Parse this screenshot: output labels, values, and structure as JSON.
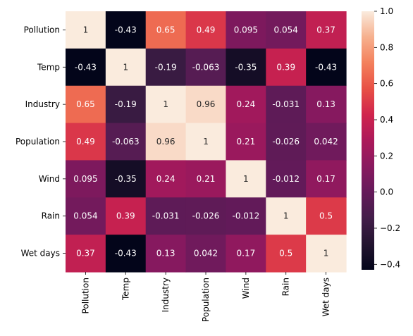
{
  "chart_data": {
    "type": "heatmap",
    "title": "",
    "xlabel": "",
    "ylabel": "",
    "x_categories": [
      "Pollution",
      "Temp",
      "Industry",
      "Population",
      "Wind",
      "Rain",
      "Wet days"
    ],
    "y_categories": [
      "Pollution",
      "Temp",
      "Industry",
      "Population",
      "Wind",
      "Rain",
      "Wet days"
    ],
    "values": [
      [
        1,
        -0.43,
        0.65,
        0.49,
        0.095,
        0.054,
        0.37
      ],
      [
        -0.43,
        1,
        -0.19,
        -0.063,
        -0.35,
        0.39,
        -0.43
      ],
      [
        0.65,
        -0.19,
        1,
        0.96,
        0.24,
        -0.031,
        0.13
      ],
      [
        0.49,
        -0.063,
        0.96,
        1,
        0.21,
        -0.026,
        0.042
      ],
      [
        0.095,
        -0.35,
        0.24,
        0.21,
        1,
        -0.012,
        0.17
      ],
      [
        0.054,
        0.39,
        -0.031,
        -0.026,
        -0.012,
        1,
        0.5
      ],
      [
        0.37,
        -0.43,
        0.13,
        0.042,
        0.17,
        0.5,
        1
      ]
    ],
    "value_labels": [
      [
        "1",
        "-0.43",
        "0.65",
        "0.49",
        "0.095",
        "0.054",
        "0.37"
      ],
      [
        "-0.43",
        "1",
        "-0.19",
        "-0.063",
        "-0.35",
        "0.39",
        "-0.43"
      ],
      [
        "0.65",
        "-0.19",
        "1",
        "0.96",
        "0.24",
        "-0.031",
        "0.13"
      ],
      [
        "0.49",
        "-0.063",
        "0.96",
        "1",
        "0.21",
        "-0.026",
        "0.042"
      ],
      [
        "0.095",
        "-0.35",
        "0.24",
        "0.21",
        "1",
        "-0.012",
        "0.17"
      ],
      [
        "0.054",
        "0.39",
        "-0.031",
        "-0.026",
        "-0.012",
        "1",
        "0.5"
      ],
      [
        "0.37",
        "-0.43",
        "0.13",
        "0.042",
        "0.17",
        "0.5",
        "1"
      ]
    ],
    "colorbar": {
      "colormap": "rocket",
      "vmin": -0.43,
      "vmax": 1,
      "ticks": [
        -0.4,
        -0.2,
        0.0,
        0.2,
        0.4,
        0.6,
        0.8,
        1.0
      ],
      "tick_labels": [
        "−0.4",
        "−0.2",
        "0.0",
        "0.2",
        "0.4",
        "0.6",
        "0.8",
        "1.0"
      ]
    },
    "legend": "colorbar-right",
    "grid": false
  }
}
